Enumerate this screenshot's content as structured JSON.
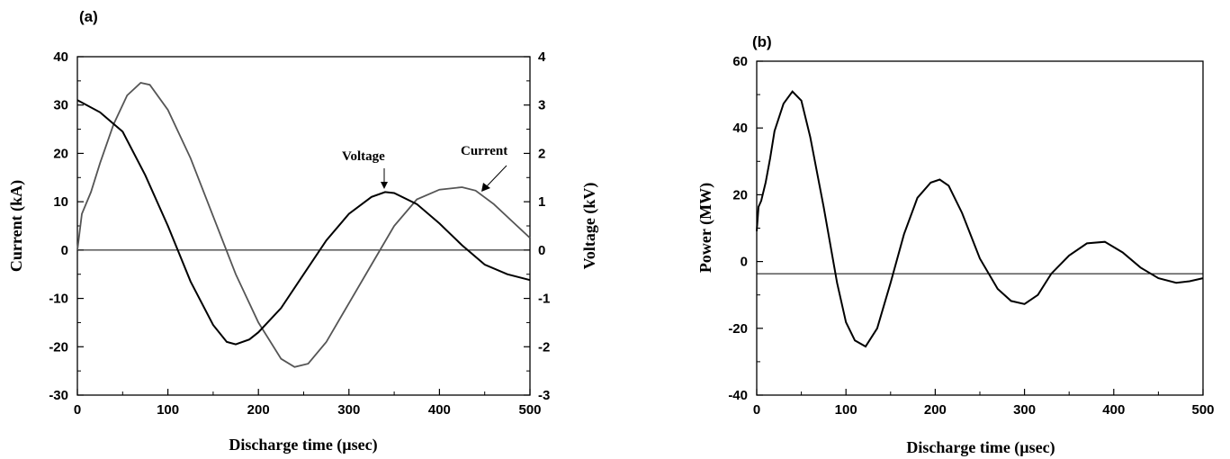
{
  "chart_data": [
    {
      "type": "line",
      "panel_label": "(a)",
      "xlabel": "Discharge time (µsec)",
      "ylabel": "Current  (kA)",
      "y2label": "Voltage  (kV)",
      "xlim": [
        0,
        500
      ],
      "ylim": [
        -30,
        40
      ],
      "y2lim": [
        -3,
        4
      ],
      "x_ticks": [
        "0",
        "100",
        "200",
        "300",
        "400",
        "500"
      ],
      "y_ticks": [
        "-30",
        "-20",
        "-10",
        "0",
        "10",
        "20",
        "30",
        "40"
      ],
      "y2_ticks": [
        "-3",
        "-2",
        "-1",
        "0",
        "1",
        "2",
        "3",
        "4"
      ],
      "zero_line": true,
      "grid": false,
      "annotations": [
        {
          "text": "Voltage",
          "points_to": [
            340,
            12
          ]
        },
        {
          "text": "Current",
          "points_to": [
            450,
            12.5
          ]
        }
      ],
      "series": [
        {
          "id": "voltage",
          "axis": "right",
          "color": "#000000",
          "x": [
            0,
            25,
            50,
            75,
            100,
            125,
            150,
            165,
            175,
            190,
            200,
            225,
            250,
            275,
            300,
            325,
            340,
            350,
            375,
            400,
            425,
            450,
            475,
            500
          ],
          "y": [
            3.1,
            2.85,
            2.45,
            1.55,
            0.5,
            -0.65,
            -1.55,
            -1.9,
            -1.95,
            -1.85,
            -1.7,
            -1.2,
            -0.5,
            0.2,
            0.75,
            1.1,
            1.2,
            1.18,
            0.95,
            0.55,
            0.1,
            -0.3,
            -0.5,
            -0.62
          ]
        },
        {
          "id": "current",
          "axis": "left",
          "color": "#555555",
          "x": [
            0,
            5,
            15,
            25,
            40,
            55,
            70,
            80,
            100,
            125,
            150,
            175,
            200,
            225,
            240,
            255,
            275,
            300,
            325,
            350,
            375,
            400,
            425,
            440,
            460,
            480,
            500
          ],
          "y": [
            0,
            7.5,
            12,
            18,
            26,
            32,
            34.6,
            34.2,
            29,
            19,
            7,
            -5,
            -15,
            -22.5,
            -24.2,
            -23.5,
            -19,
            -11,
            -3,
            5,
            10.5,
            12.5,
            13,
            12.3,
            9.5,
            6,
            2.5
          ]
        }
      ]
    },
    {
      "type": "line",
      "panel_label": "(b)",
      "xlabel": "Discharge time (µsec)",
      "ylabel": "Power  (MW)",
      "xlim": [
        0,
        500
      ],
      "ylim": [
        -40,
        70
      ],
      "x_ticks": [
        "0",
        "100",
        "200",
        "300",
        "400",
        "500"
      ],
      "y_ticks": [
        "-40",
        "-20",
        "0",
        "20",
        "40",
        "60"
      ],
      "zero_line": true,
      "grid": false,
      "series": [
        {
          "id": "power",
          "color": "#000000",
          "x": [
            0,
            2,
            5,
            10,
            15,
            20,
            30,
            40,
            50,
            60,
            75,
            90,
            100,
            110,
            122,
            135,
            150,
            165,
            180,
            195,
            205,
            215,
            230,
            250,
            270,
            285,
            300,
            315,
            330,
            350,
            370,
            390,
            410,
            430,
            450,
            470,
            485,
            500
          ],
          "y": [
            14,
            22,
            24,
            30,
            38,
            47,
            56,
            60,
            57,
            45,
            22,
            -3,
            -16,
            -22,
            -24,
            -18,
            -3,
            13,
            25,
            30,
            31,
            29,
            20,
            5,
            -5,
            -9,
            -10,
            -7,
            0,
            6,
            10,
            10.5,
            7,
            2,
            -1.5,
            -3,
            -2.5,
            -1.5
          ]
        }
      ]
    }
  ]
}
